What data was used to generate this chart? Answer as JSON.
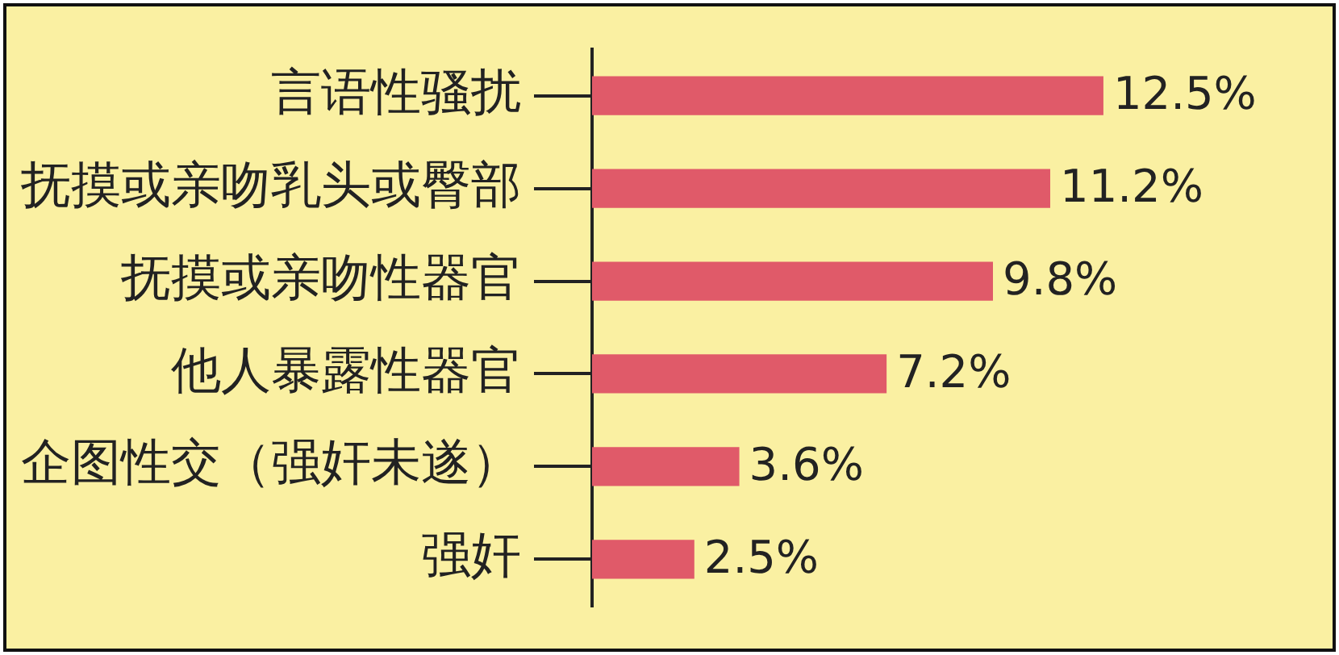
{
  "chart_data": {
    "type": "bar",
    "orientation": "horizontal",
    "categories": [
      "言语性骚扰",
      "抚摸或亲吻乳头或臀部",
      "抚摸或亲吻性器官",
      "他人暴露性器官",
      "企图性交（强奸未遂）",
      "强奸"
    ],
    "values": [
      12.5,
      11.2,
      9.8,
      7.2,
      3.6,
      2.5
    ],
    "color": "#e05a69",
    "value_labels": [
      "12.5%",
      "11.2%",
      "9.8%",
      "7.2%",
      "3.6%",
      "2.5%"
    ],
    "legend": false
  }
}
